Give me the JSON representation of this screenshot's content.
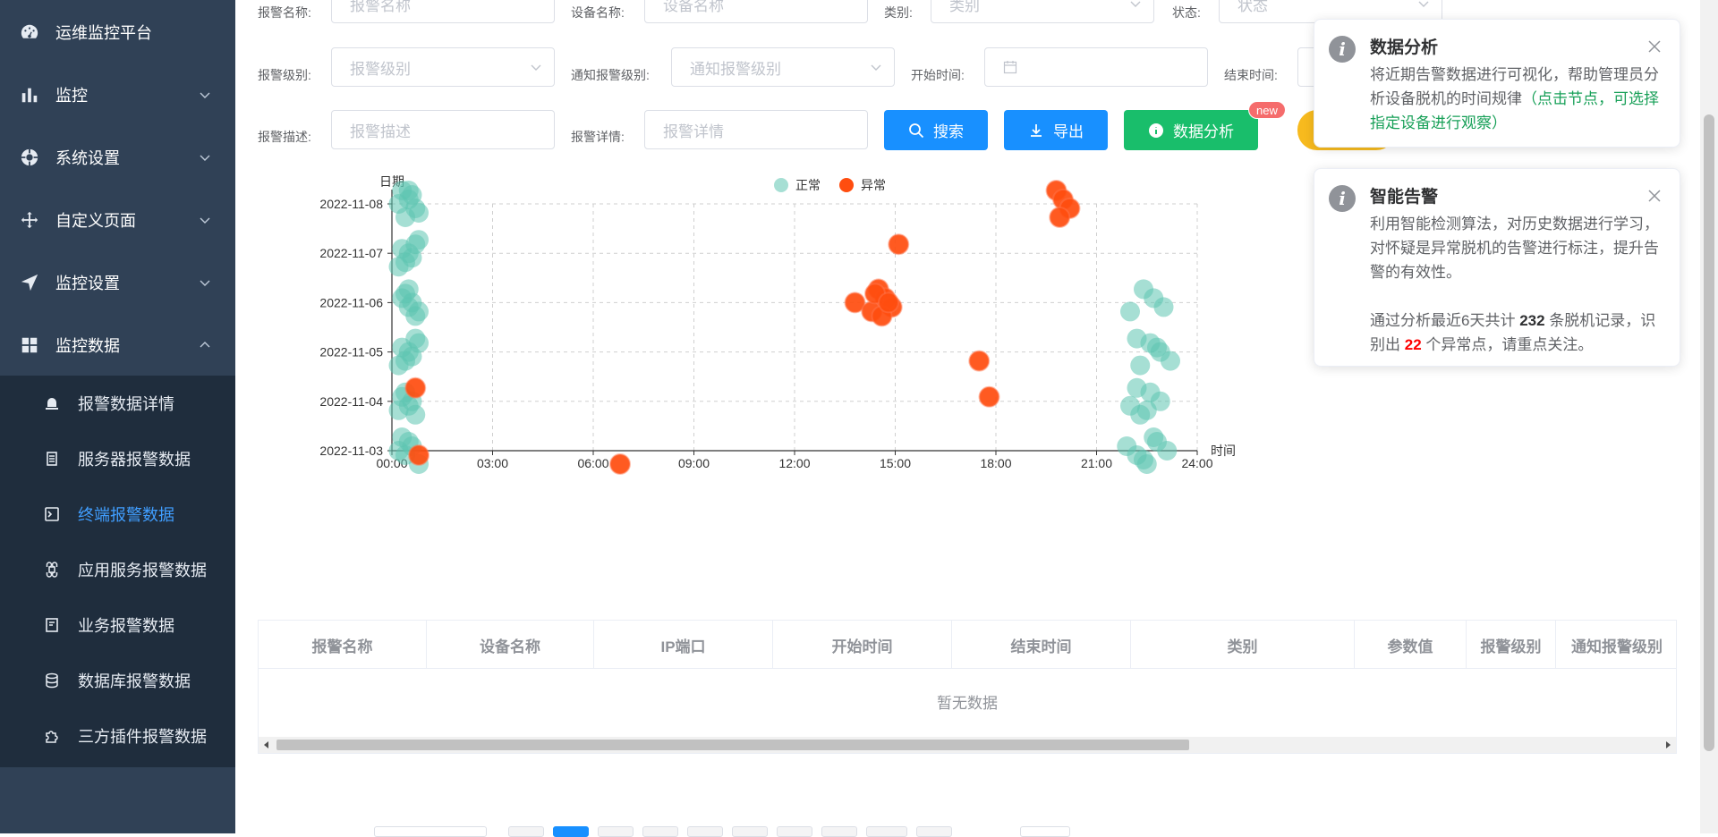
{
  "sidebar": {
    "brand": "运维监控平台",
    "items": [
      {
        "label": "监控",
        "icon": "bar-chart-icon"
      },
      {
        "label": "系统设置",
        "icon": "settings-icon"
      },
      {
        "label": "自定义页面",
        "icon": "move-icon"
      },
      {
        "label": "监控设置",
        "icon": "send-icon"
      },
      {
        "label": "监控数据",
        "icon": "grid-icon"
      }
    ],
    "subitems": [
      {
        "label": "报警数据详情",
        "icon": "alarm-icon"
      },
      {
        "label": "服务器报警数据",
        "icon": "server-icon"
      },
      {
        "label": "终端报警数据",
        "icon": "terminal-icon"
      },
      {
        "label": "应用服务报警数据",
        "icon": "command-icon"
      },
      {
        "label": "业务报警数据",
        "icon": "book-icon"
      },
      {
        "label": "数据库报警数据",
        "icon": "database-icon"
      },
      {
        "label": "三方插件报警数据",
        "icon": "puzzle-icon"
      }
    ],
    "active_sub": "终端报警数据"
  },
  "filters": {
    "alarm_name_label": "报警名称:",
    "alarm_name_placeholder": "报警名称",
    "device_name_label": "设备名称:",
    "device_name_placeholder": "设备名称",
    "category_label": "类别:",
    "category_placeholder": "类别",
    "status_label": "状态:",
    "status_placeholder": "状态",
    "level_label": "报警级别:",
    "level_placeholder": "报警级别",
    "notify_level_label": "通知报警级别:",
    "notify_level_placeholder": "通知报警级别",
    "start_label": "开始时间:",
    "end_label": "结束时间:",
    "desc_label": "报警描述:",
    "desc_placeholder": "报警描述",
    "detail_label": "报警详情:",
    "detail_placeholder": "报警详情"
  },
  "buttons": {
    "search": "搜索",
    "export": "导出",
    "analysis": "数据分析",
    "new_badge": "new",
    "colors": {
      "search": "#1890ff",
      "export": "#1890ff",
      "analysis": "#19be6b",
      "yellow": "#f7ba1e"
    }
  },
  "chart_data": {
    "type": "scatter",
    "xlabel": "时间",
    "ylabel": "日期",
    "x_ticks": [
      "00:00",
      "03:00",
      "06:00",
      "09:00",
      "12:00",
      "15:00",
      "18:00",
      "21:00",
      "24:00"
    ],
    "xlim": [
      0,
      24
    ],
    "y_categories": [
      "2022-11-03",
      "2022-11-04",
      "2022-11-05",
      "2022-11-06",
      "2022-11-07",
      "2022-11-08"
    ],
    "grid": true,
    "legend_position": "top",
    "series": [
      {
        "name": "正常",
        "color": "#5cc5b1",
        "points": [
          [
            0.3,
            "2022-11-08"
          ],
          [
            0.5,
            "2022-11-08"
          ],
          [
            0.7,
            "2022-11-08"
          ],
          [
            0.4,
            "2022-11-08"
          ],
          [
            0.6,
            "2022-11-08"
          ],
          [
            0.2,
            "2022-11-08"
          ],
          [
            0.8,
            "2022-11-08"
          ],
          [
            0.5,
            "2022-11-08"
          ],
          [
            0.3,
            "2022-11-07"
          ],
          [
            0.6,
            "2022-11-07"
          ],
          [
            0.2,
            "2022-11-07"
          ],
          [
            0.7,
            "2022-11-07"
          ],
          [
            0.5,
            "2022-11-07"
          ],
          [
            0.4,
            "2022-11-07"
          ],
          [
            0.8,
            "2022-11-07"
          ],
          [
            0.3,
            "2022-11-06"
          ],
          [
            0.5,
            "2022-11-06"
          ],
          [
            0.7,
            "2022-11-06"
          ],
          [
            0.4,
            "2022-11-06"
          ],
          [
            0.6,
            "2022-11-06"
          ],
          [
            0.8,
            "2022-11-06"
          ],
          [
            0.5,
            "2022-11-06"
          ],
          [
            0.3,
            "2022-11-05"
          ],
          [
            0.6,
            "2022-11-05"
          ],
          [
            0.2,
            "2022-11-05"
          ],
          [
            0.8,
            "2022-11-05"
          ],
          [
            0.5,
            "2022-11-05"
          ],
          [
            0.4,
            "2022-11-05"
          ],
          [
            0.7,
            "2022-11-05"
          ],
          [
            0.3,
            "2022-11-04"
          ],
          [
            0.5,
            "2022-11-04"
          ],
          [
            0.7,
            "2022-11-04"
          ],
          [
            0.4,
            "2022-11-04"
          ],
          [
            0.6,
            "2022-11-04"
          ],
          [
            0.2,
            "2022-11-04"
          ],
          [
            0.3,
            "2022-11-03"
          ],
          [
            0.6,
            "2022-11-03"
          ],
          [
            0.4,
            "2022-11-03"
          ],
          [
            0.8,
            "2022-11-03"
          ],
          [
            0.5,
            "2022-11-03"
          ],
          [
            0.2,
            "2022-11-03"
          ],
          [
            22.0,
            "2022-11-06"
          ],
          [
            22.4,
            "2022-11-06"
          ],
          [
            22.7,
            "2022-11-06"
          ],
          [
            23.0,
            "2022-11-06"
          ],
          [
            22.3,
            "2022-11-05"
          ],
          [
            22.6,
            "2022-11-05"
          ],
          [
            22.9,
            "2022-11-05"
          ],
          [
            23.2,
            "2022-11-05"
          ],
          [
            22.2,
            "2022-11-05"
          ],
          [
            22.8,
            "2022-11-05"
          ],
          [
            22.0,
            "2022-11-04"
          ],
          [
            22.3,
            "2022-11-04"
          ],
          [
            22.6,
            "2022-11-04"
          ],
          [
            22.9,
            "2022-11-04"
          ],
          [
            22.5,
            "2022-11-04"
          ],
          [
            22.2,
            "2022-11-04"
          ],
          [
            21.9,
            "2022-11-03"
          ],
          [
            22.2,
            "2022-11-03"
          ],
          [
            22.5,
            "2022-11-03"
          ],
          [
            22.8,
            "2022-11-03"
          ],
          [
            23.1,
            "2022-11-03"
          ],
          [
            22.4,
            "2022-11-03"
          ],
          [
            22.7,
            "2022-11-03"
          ]
        ]
      },
      {
        "name": "异常",
        "color": "#ff4d0f",
        "points": [
          [
            19.8,
            "2022-11-08"
          ],
          [
            20.0,
            "2022-11-08"
          ],
          [
            20.2,
            "2022-11-08"
          ],
          [
            19.9,
            "2022-11-08"
          ],
          [
            15.1,
            "2022-11-07"
          ],
          [
            13.8,
            "2022-11-06"
          ],
          [
            14.3,
            "2022-11-06"
          ],
          [
            14.5,
            "2022-11-06"
          ],
          [
            14.7,
            "2022-11-06"
          ],
          [
            14.9,
            "2022-11-06"
          ],
          [
            14.6,
            "2022-11-06"
          ],
          [
            14.4,
            "2022-11-06"
          ],
          [
            14.8,
            "2022-11-06"
          ],
          [
            17.5,
            "2022-11-05"
          ],
          [
            0.7,
            "2022-11-04"
          ],
          [
            17.8,
            "2022-11-04"
          ],
          [
            0.8,
            "2022-11-03"
          ],
          [
            6.8,
            "2022-11-03"
          ]
        ]
      }
    ]
  },
  "table": {
    "columns": [
      "报警名称",
      "设备名称",
      "IP端口",
      "开始时间",
      "结束时间",
      "类别",
      "参数值",
      "报警级别",
      "通知报警级别"
    ],
    "empty_text": "暂无数据"
  },
  "notifications": [
    {
      "title": "数据分析",
      "body_plain": "将近期告警数据进行可视化，帮助管理员分析设备脱机的时间规律",
      "body_green": "（点击节点，可选择指定设备进行观察）"
    },
    {
      "title": "智能告警",
      "body": "利用智能检测算法，对历史数据进行学习，对怀疑是异常脱机的告警进行标注，提升告警的有效性。",
      "summary_prefix": "通过分析最近6天共计",
      "total_count": "232",
      "summary_mid": "条脱机记录，识别出",
      "anomaly_count": "22",
      "summary_suffix": "个异常点，请重点关注。"
    }
  ]
}
